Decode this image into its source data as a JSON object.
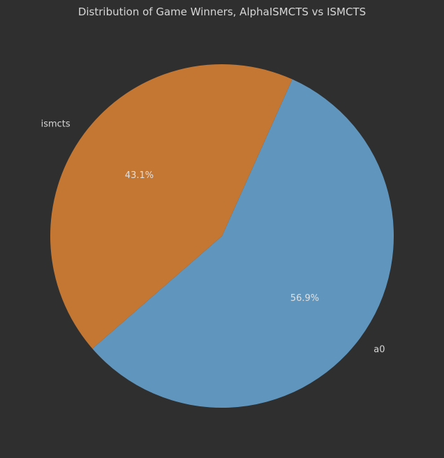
{
  "chart_data": {
    "type": "pie",
    "title": "Distribution of Game Winners, AlphaISMCTS vs ISMCTS",
    "slices": [
      {
        "label": "a0",
        "value": 56.9,
        "pct_text": "56.9%",
        "color": "#6096bd"
      },
      {
        "label": "ismcts",
        "value": 43.1,
        "pct_text": "43.1%",
        "color": "#c47732"
      }
    ],
    "legend": "none"
  }
}
